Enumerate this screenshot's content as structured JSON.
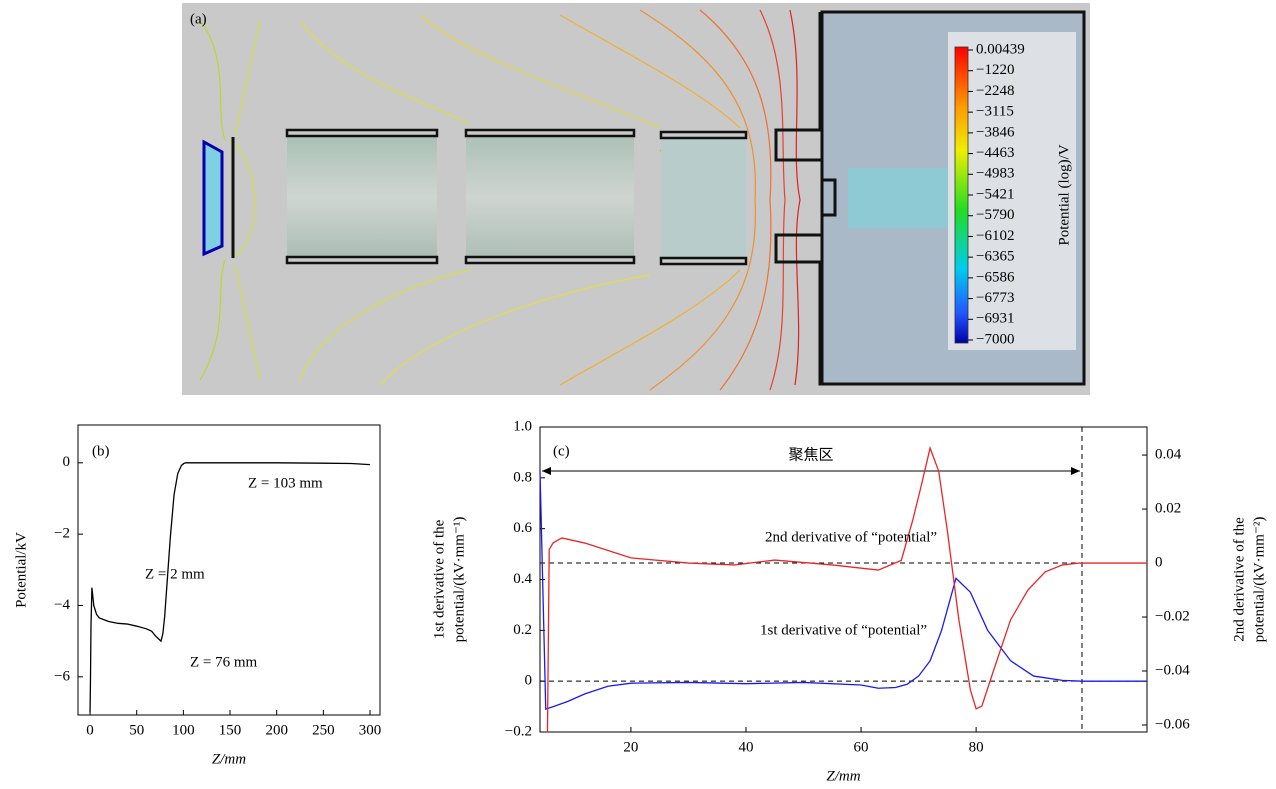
{
  "chart_data": [
    {
      "type": "field",
      "panel_label": "(a)",
      "colorbar": {
        "label": "Potential (log)/V",
        "ticks": [
          0.00439,
          {
            "value": -1220,
            "label": "−1220"
          },
          {
            "value": -2248,
            "label": "−2248"
          },
          {
            "value": -3115,
            "label": "−3115"
          },
          {
            "value": -3846,
            "label": "−3846"
          },
          {
            "value": -4463,
            "label": "−4463"
          },
          {
            "value": -4983,
            "label": "−4983"
          },
          {
            "value": -5421,
            "label": "−5421"
          },
          {
            "value": -5790,
            "label": "−5790"
          },
          {
            "value": -6102,
            "label": "−6102"
          },
          {
            "value": -6365,
            "label": "−6365"
          },
          {
            "value": -6586,
            "label": "−6586"
          },
          {
            "value": -6773,
            "label": "−6773"
          },
          {
            "value": -6931,
            "label": "−6931"
          },
          {
            "value": -7000,
            "label": "−7000"
          }
        ]
      }
    },
    {
      "type": "line",
      "panel_label": "(b)",
      "xlabel": "Z/mm",
      "ylabel": "Potential/kV",
      "xlim": [
        -12.9,
        310.7
      ],
      "xticks": [
        0,
        50,
        100,
        150,
        200,
        250,
        300
      ],
      "ylim": [
        -7.07,
        1.06
      ],
      "yticks": [
        {
          "value": -6,
          "label": "−6"
        },
        {
          "value": -4,
          "label": "−4"
        },
        {
          "value": -2,
          "label": "−2"
        },
        0
      ],
      "annotations": [
        {
          "text": "Z = 2 mm",
          "color": "#e8262a"
        },
        {
          "text": "Z = 103 mm",
          "color": "#e8262a"
        },
        {
          "text": "Z = 76 mm",
          "color": "#e8262a"
        }
      ],
      "series": [
        {
          "color": "#000000",
          "x": [
            0,
            0.5,
            1,
            2,
            4,
            7,
            10,
            20,
            30,
            40,
            50,
            60,
            66,
            70,
            74,
            76,
            78,
            80,
            83,
            86,
            90,
            94,
            98,
            101,
            103,
            110,
            150,
            200,
            250,
            280,
            300
          ],
          "values": [
            -7.0,
            -6.0,
            -4.6,
            -3.5,
            -4.0,
            -4.25,
            -4.35,
            -4.45,
            -4.5,
            -4.52,
            -4.58,
            -4.65,
            -4.72,
            -4.85,
            -4.95,
            -5.0,
            -4.8,
            -4.3,
            -3.2,
            -2.1,
            -0.9,
            -0.3,
            -0.07,
            -0.01,
            0.0,
            0.0,
            0.0,
            0.0,
            -0.01,
            -0.02,
            -0.05
          ]
        }
      ]
    },
    {
      "type": "line",
      "panel_label": "(c)",
      "xlabel": "Z/mm",
      "ylabel": [
        "1st derivative of the",
        "potential/(kV·mm⁻¹)"
      ],
      "y2label": [
        "2nd derivative of the",
        "potential/(kV·mm⁻²)"
      ],
      "xlim": [
        4.2,
        109.7
      ],
      "xticks": [
        20,
        40,
        60,
        80
      ],
      "ylim": [
        -0.2,
        1.0
      ],
      "yticks": [
        {
          "value": -0.2,
          "label": "−0.2"
        },
        0,
        0.2,
        0.4,
        0.6,
        0.8,
        {
          "value": 1.0,
          "label": "1.0"
        }
      ],
      "y2lim": [
        -0.0626,
        0.0504
      ],
      "y2ticks": [
        {
          "value": -0.06,
          "label": "−0.06"
        },
        {
          "value": -0.04,
          "label": "−0.04"
        },
        {
          "value": -0.02,
          "label": "−0.02"
        },
        0,
        0.02,
        0.04
      ],
      "hline_y": 0,
      "hline_y2": 0,
      "vline": 98.4,
      "region_label": "聚焦区",
      "annotations": [
        {
          "text": "2nd derivative of “potential”",
          "color": "#e8262a"
        },
        {
          "text": "1st derivative of “potential”",
          "color": "#1a1aee"
        }
      ],
      "series": [
        {
          "color": "#1a1aee",
          "x": [
            4.2,
            5.2,
            6.5,
            9,
            12,
            16,
            20,
            30,
            40,
            50,
            60,
            63,
            66,
            68,
            70,
            72,
            74,
            76.5,
            79,
            82,
            86,
            90,
            95,
            98.4,
            104,
            109.7
          ],
          "values": [
            0.83,
            -0.11,
            -0.1,
            -0.08,
            -0.05,
            -0.02,
            -0.008,
            -0.005,
            -0.01,
            -0.005,
            -0.015,
            -0.028,
            -0.025,
            -0.012,
            0.02,
            0.08,
            0.2,
            0.405,
            0.35,
            0.2,
            0.08,
            0.02,
            0.003,
            0,
            0,
            0
          ]
        },
        {
          "color": "#e8262a",
          "axis": "y2",
          "x": [
            5.5,
            5.8,
            6.5,
            8,
            12,
            20,
            30,
            38,
            45,
            55,
            63,
            67,
            69,
            70.5,
            72,
            73.5,
            75,
            77,
            79,
            80,
            81,
            83,
            86,
            89,
            92,
            95,
            98,
            104,
            109.7
          ],
          "values": [
            -0.0626,
            0.005,
            0.0075,
            0.0093,
            0.0074,
            0.0019,
            0,
            -0.0007,
            0.0011,
            -0.0007,
            -0.0026,
            0.001,
            0.016,
            0.029,
            0.0426,
            0.034,
            0.012,
            -0.021,
            -0.047,
            -0.054,
            -0.053,
            -0.04,
            -0.021,
            -0.01,
            -0.0033,
            -0.0007,
            0,
            0,
            0
          ]
        }
      ]
    }
  ]
}
